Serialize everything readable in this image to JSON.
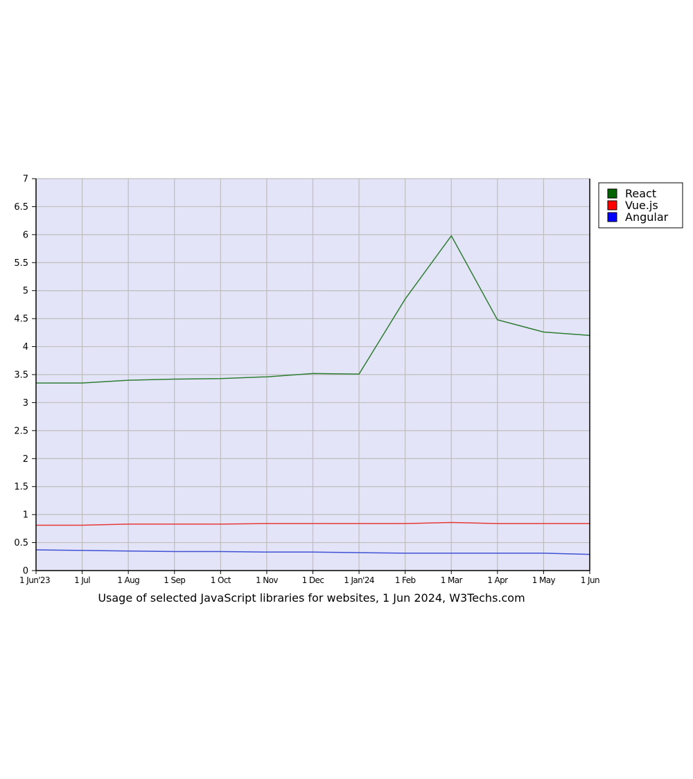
{
  "chart_data": {
    "type": "line",
    "caption": "Usage of selected JavaScript libraries for websites, 1 Jun 2024, W3Techs.com",
    "x": [
      "1 Jun'23",
      "1 Jul",
      "1 Aug",
      "1 Sep",
      "1 Oct",
      "1 Nov",
      "1 Dec",
      "1 Jan'24",
      "1 Feb",
      "1 Mar",
      "1 Apr",
      "1 May",
      "1 Jun"
    ],
    "ylim": [
      0,
      7
    ],
    "yticks": [
      "0",
      "0.5",
      "1",
      "1.5",
      "2",
      "2.5",
      "3",
      "3.5",
      "4",
      "4.5",
      "5",
      "5.5",
      "6",
      "6.5",
      "7"
    ],
    "grid": true,
    "legend_position": "right",
    "plot_background": "#e4e4f8",
    "series": [
      {
        "name": "React",
        "color": "#2e7d32",
        "swatch": "#006400",
        "values": [
          3.35,
          3.35,
          3.4,
          3.42,
          3.43,
          3.46,
          3.52,
          3.51,
          4.85,
          5.98,
          4.48,
          4.26,
          4.2
        ]
      },
      {
        "name": "Vue.js",
        "color": "#e53935",
        "swatch": "#ff0000",
        "values": [
          0.81,
          0.81,
          0.83,
          0.83,
          0.83,
          0.84,
          0.84,
          0.84,
          0.84,
          0.86,
          0.84,
          0.84,
          0.84
        ]
      },
      {
        "name": "Angular",
        "color": "#3f51d5",
        "swatch": "#0000ff",
        "values": [
          0.37,
          0.36,
          0.35,
          0.34,
          0.34,
          0.33,
          0.33,
          0.32,
          0.31,
          0.31,
          0.31,
          0.31,
          0.29
        ]
      }
    ]
  }
}
